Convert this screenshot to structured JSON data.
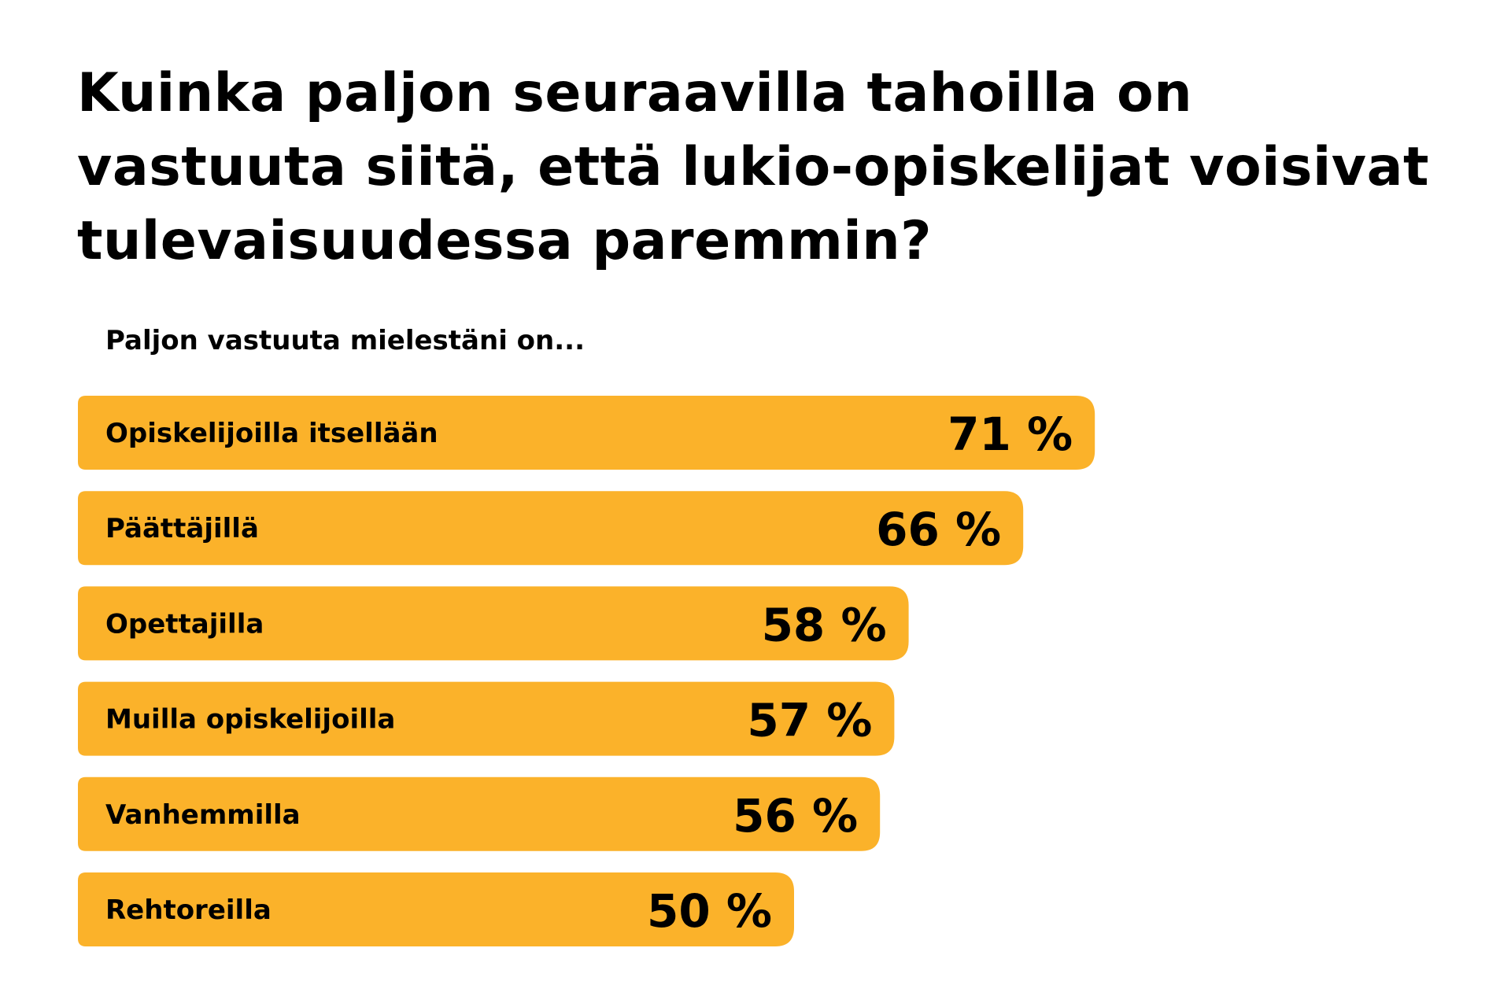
{
  "title": "Kuinka paljon seuraavilla tahoilla on vastuuta siitä, että lukio-opiskelijat voisivat tulevaisuudessa paremmin?",
  "subtitle": "Paljon vastuuta mielestäni on...",
  "colors": {
    "bar": "#FBB22A",
    "text": "#000000",
    "background": "#FFFFFF"
  },
  "chart_data": {
    "type": "bar",
    "orientation": "horizontal",
    "title": "Kuinka paljon seuraavilla tahoilla on vastuuta siitä, että lukio-opiskelijat voisivat tulevaisuudessa paremmin?",
    "subtitle": "Paljon vastuuta mielestäni on...",
    "categories": [
      "Opiskelijoilla itsellään",
      "Päättäjillä",
      "Opettajilla",
      "Muilla opiskelijoilla",
      "Vanhemmilla",
      "Rehtoreilla"
    ],
    "values": [
      71,
      66,
      58,
      57,
      56,
      50
    ],
    "value_labels": [
      "71 %",
      "66 %",
      "58 %",
      "57 %",
      "56 %",
      "50 %"
    ],
    "unit": "%",
    "xlim": [
      0,
      100
    ],
    "grid": false,
    "legend": "none"
  }
}
